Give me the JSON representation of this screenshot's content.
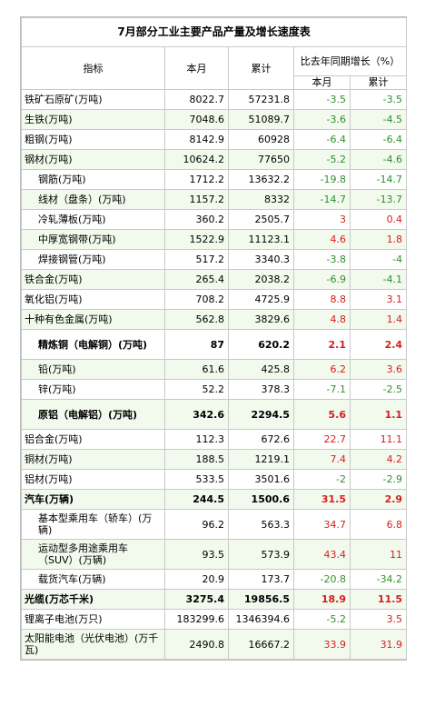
{
  "title": "7月部分工业主要产品产量及增长速度表",
  "headers": {
    "indicator": "指标",
    "month": "本月",
    "cumulative": "累计",
    "growth": "比去年同期增长（%）",
    "growth_month": "本月",
    "growth_cumulative": "累计"
  },
  "colors": {
    "negative": "#2f8f2f",
    "positive": "#d61f1f",
    "row_tint": "#f2f9ed"
  },
  "rows": [
    {
      "name": "铁矿石原矿(万吨)",
      "month": "8022.7",
      "cum": "57231.8",
      "g_m": "-3.5",
      "g_c": "-3.5",
      "indent": false,
      "bold": false,
      "tall": false
    },
    {
      "name": "生铁(万吨)",
      "month": "7048.6",
      "cum": "51089.7",
      "g_m": "-3.6",
      "g_c": "-4.5",
      "indent": false,
      "bold": false,
      "tall": false
    },
    {
      "name": "粗钢(万吨)",
      "month": "8142.9",
      "cum": "60928",
      "g_m": "-6.4",
      "g_c": "-6.4",
      "indent": false,
      "bold": false,
      "tall": false
    },
    {
      "name": "钢材(万吨)",
      "month": "10624.2",
      "cum": "77650",
      "g_m": "-5.2",
      "g_c": "-4.6",
      "indent": false,
      "bold": false,
      "tall": false
    },
    {
      "name": "钢筋(万吨)",
      "month": "1712.2",
      "cum": "13632.2",
      "g_m": "-19.8",
      "g_c": "-14.7",
      "indent": true,
      "bold": false,
      "tall": false
    },
    {
      "name": "线材（盘条）(万吨)",
      "month": "1157.2",
      "cum": "8332",
      "g_m": "-14.7",
      "g_c": "-13.7",
      "indent": true,
      "bold": false,
      "tall": false
    },
    {
      "name": "冷轧薄板(万吨)",
      "month": "360.2",
      "cum": "2505.7",
      "g_m": "3",
      "g_c": "0.4",
      "indent": true,
      "bold": false,
      "tall": false
    },
    {
      "name": "中厚宽钢带(万吨)",
      "month": "1522.9",
      "cum": "11123.1",
      "g_m": "4.6",
      "g_c": "1.8",
      "indent": true,
      "bold": false,
      "tall": false
    },
    {
      "name": "焊接钢管(万吨)",
      "month": "517.2",
      "cum": "3340.3",
      "g_m": "-3.8",
      "g_c": "-4",
      "indent": true,
      "bold": false,
      "tall": false
    },
    {
      "name": "铁合金(万吨)",
      "month": "265.4",
      "cum": "2038.2",
      "g_m": "-6.9",
      "g_c": "-4.1",
      "indent": false,
      "bold": false,
      "tall": false
    },
    {
      "name": "氧化铝(万吨)",
      "month": "708.2",
      "cum": "4725.9",
      "g_m": "8.8",
      "g_c": "3.1",
      "indent": false,
      "bold": false,
      "tall": false
    },
    {
      "name": "十种有色金属(万吨)",
      "month": "562.8",
      "cum": "3829.6",
      "g_m": "4.8",
      "g_c": "1.4",
      "indent": false,
      "bold": false,
      "tall": false
    },
    {
      "name": "精炼铜（电解铜）(万吨)",
      "month": "87",
      "cum": "620.2",
      "g_m": "2.1",
      "g_c": "2.4",
      "indent": true,
      "bold": true,
      "tall": true
    },
    {
      "name": "铅(万吨)",
      "month": "61.6",
      "cum": "425.8",
      "g_m": "6.2",
      "g_c": "3.6",
      "indent": true,
      "bold": false,
      "tall": false
    },
    {
      "name": "锌(万吨)",
      "month": "52.2",
      "cum": "378.3",
      "g_m": "-7.1",
      "g_c": "-2.5",
      "indent": true,
      "bold": false,
      "tall": false
    },
    {
      "name": "原铝（电解铝）(万吨)",
      "month": "342.6",
      "cum": "2294.5",
      "g_m": "5.6",
      "g_c": "1.1",
      "indent": true,
      "bold": true,
      "tall": true
    },
    {
      "name": "铝合金(万吨)",
      "month": "112.3",
      "cum": "672.6",
      "g_m": "22.7",
      "g_c": "11.1",
      "indent": false,
      "bold": false,
      "tall": false
    },
    {
      "name": "铜材(万吨)",
      "month": "188.5",
      "cum": "1219.1",
      "g_m": "7.4",
      "g_c": "4.2",
      "indent": false,
      "bold": false,
      "tall": false
    },
    {
      "name": "铝材(万吨)",
      "month": "533.5",
      "cum": "3501.6",
      "g_m": "-2",
      "g_c": "-2.9",
      "indent": false,
      "bold": false,
      "tall": false
    },
    {
      "name": "汽车(万辆)",
      "month": "244.5",
      "cum": "1500.6",
      "g_m": "31.5",
      "g_c": "2.9",
      "indent": false,
      "bold": true,
      "tall": false
    },
    {
      "name": "基本型乘用车（轿车）(万辆)",
      "month": "96.2",
      "cum": "563.3",
      "g_m": "34.7",
      "g_c": "6.8",
      "indent": true,
      "bold": false,
      "tall": true
    },
    {
      "name": "运动型多用途乘用车（SUV）(万辆)",
      "month": "93.5",
      "cum": "573.9",
      "g_m": "43.4",
      "g_c": "11",
      "indent": true,
      "bold": false,
      "tall": true
    },
    {
      "name": "载货汽车(万辆)",
      "month": "20.9",
      "cum": "173.7",
      "g_m": "-20.8",
      "g_c": "-34.2",
      "indent": true,
      "bold": false,
      "tall": false
    },
    {
      "name": "光缆(万芯千米)",
      "month": "3275.4",
      "cum": "19856.5",
      "g_m": "18.9",
      "g_c": "11.5",
      "indent": false,
      "bold": true,
      "tall": false
    },
    {
      "name": "锂离子电池(万只)",
      "month": "183299.6",
      "cum": "1346394.6",
      "g_m": "-5.2",
      "g_c": "3.5",
      "indent": false,
      "bold": false,
      "tall": false
    },
    {
      "name": "太阳能电池（光伏电池）(万千瓦)",
      "month": "2490.8",
      "cum": "16667.2",
      "g_m": "33.9",
      "g_c": "31.9",
      "indent": false,
      "bold": false,
      "tall": true
    }
  ]
}
